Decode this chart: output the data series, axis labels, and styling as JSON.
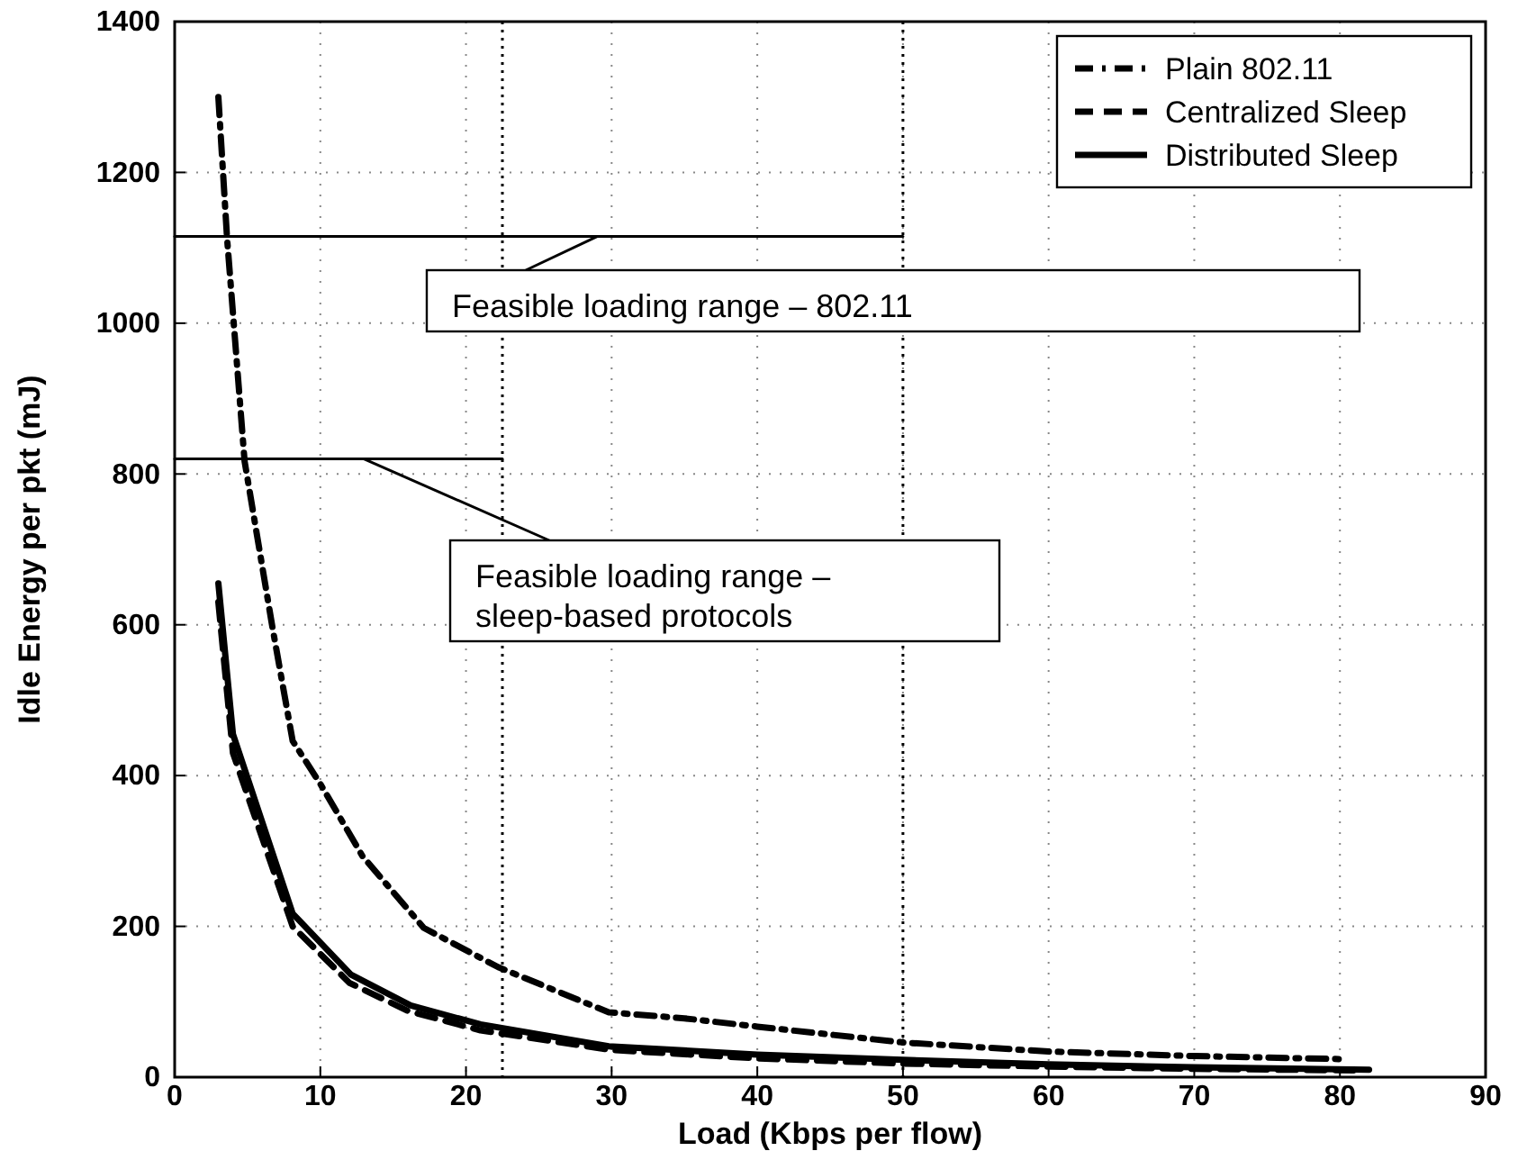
{
  "chart_data": {
    "type": "line",
    "xlabel": "Load (Kbps per flow)",
    "ylabel": "Idle Energy per pkt (mJ)",
    "xlim": [
      0,
      90
    ],
    "xticks": [
      0,
      10,
      20,
      30,
      40,
      50,
      60,
      70,
      80,
      90
    ],
    "ylim": [
      0,
      1400
    ],
    "yticks": [
      0,
      200,
      400,
      600,
      800,
      1000,
      1200,
      1400
    ],
    "grid": true,
    "legend": "top right",
    "marker": "none",
    "series": [
      {
        "name": "Plain 802.11",
        "color": "#000000",
        "line_style": "dashdot",
        "x": [
          3,
          3.6,
          4.8,
          6.7,
          8.1,
          10,
          12.9,
          17.1,
          22.2,
          29.8,
          35,
          40,
          50,
          60,
          70,
          80
        ],
        "values": [
          1300,
          1112,
          817,
          598,
          446,
          389,
          293,
          198,
          146,
          86,
          78,
          67,
          46,
          34,
          28,
          24
        ]
      },
      {
        "name": "Centralized Sleep",
        "color": "#000000",
        "line_style": "dashed",
        "x": [
          3,
          4,
          8.1,
          12,
          16,
          21,
          30,
          40,
          50,
          60,
          70,
          81
        ],
        "values": [
          630,
          430,
          200,
          125,
          88,
          62,
          36,
          25,
          18,
          14,
          11,
          9
        ]
      },
      {
        "name": "Distributed Sleep",
        "color": "#000000",
        "line_style": "solid",
        "x": [
          3,
          4,
          8.1,
          12.1,
          16.2,
          21,
          29.8,
          40,
          50,
          60,
          70,
          82
        ],
        "values": [
          655,
          455,
          217,
          136,
          95,
          70,
          41,
          30,
          23,
          17,
          13,
          10
        ]
      },
      {
        "type": "line",
        "color": "#000000",
        "line_style": "solid",
        "x": [
          0,
          50
        ],
        "values": [
          1115,
          1115
        ]
      },
      {
        "type": "line",
        "color": "#000000",
        "line_style": "solid",
        "x": [
          0,
          22.5
        ],
        "values": [
          820,
          820
        ]
      }
    ],
    "ref_lines": [
      {
        "axis": "x",
        "value": 22.5,
        "line_style": "dotted"
      },
      {
        "axis": "x",
        "value": 50,
        "line_style": "dotted"
      }
    ],
    "annotations": [
      {
        "text": "Feasible loading range – 802.11",
        "x": 29,
        "y": 1115
      },
      {
        "text": "Feasible loading range –\nsleep-based protocols",
        "x": 13,
        "y": 820
      }
    ]
  }
}
